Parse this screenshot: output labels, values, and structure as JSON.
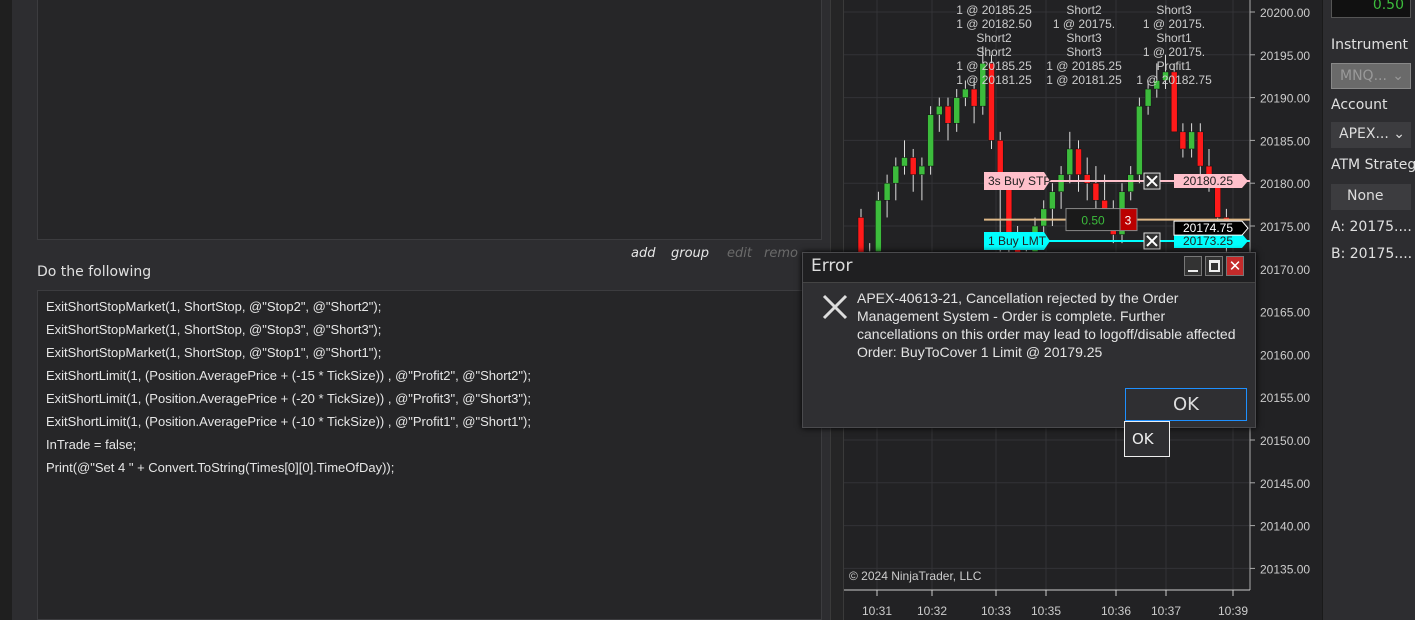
{
  "editor": {
    "actions": [
      {
        "label": "add",
        "enabled": true
      },
      {
        "label": "group",
        "enabled": true
      },
      {
        "label": "edit",
        "enabled": false
      },
      {
        "label": "remo",
        "enabled": false
      }
    ],
    "section_label": "Do the following",
    "code_lines": [
      "ExitShortStopMarket(1, ShortStop, @\"Stop2\", @\"Short2\");",
      "ExitShortStopMarket(1, ShortStop, @\"Stop3\", @\"Short3\");",
      "ExitShortStopMarket(1, ShortStop, @\"Stop1\", @\"Short1\");",
      "ExitShortLimit(1, (Position.AveragePrice + (-15 * TickSize)) , @\"Profit2\", @\"Short2\");",
      "ExitShortLimit(1, (Position.AveragePrice + (-20 * TickSize)) , @\"Profit3\", @\"Short3\");",
      "ExitShortLimit(1, (Position.AveragePrice + (-10 * TickSize)) , @\"Profit1\", @\"Short1\");",
      "InTrade = false;",
      "Print(@\"Set 4 \" + Convert.ToString(Times[0][0].TimeOfDay));"
    ]
  },
  "chart_data": {
    "type": "candlestick",
    "ylim": [
      20132,
      20201
    ],
    "y_ticks": [
      "20200.00",
      "20195.00",
      "20190.00",
      "20185.00",
      "20180.00",
      "20175.00",
      "20170.00",
      "20165.00",
      "20160.00",
      "20155.00",
      "20150.00",
      "20145.00",
      "20140.00",
      "20135.00"
    ],
    "x_ticks": [
      "10:31",
      "10:32",
      "10:33",
      "10:35",
      "10:36",
      "10:37",
      "10:39"
    ],
    "candles": [
      [
        20176,
        20177,
        20169,
        20171
      ],
      [
        20171,
        20173,
        20169,
        20172
      ],
      [
        20172,
        20179,
        20170,
        20178
      ],
      [
        20178,
        20181,
        20176,
        20180
      ],
      [
        20180,
        20183,
        20178,
        20182
      ],
      [
        20182,
        20185,
        20181,
        20183
      ],
      [
        20183,
        20184,
        20179,
        20181
      ],
      [
        20181,
        20183,
        20178,
        20182
      ],
      [
        20182,
        20189,
        20181,
        20188
      ],
      [
        20188,
        20190,
        20186,
        20189
      ],
      [
        20189,
        20190,
        20185,
        20187
      ],
      [
        20187,
        20191,
        20186,
        20190
      ],
      [
        20190,
        20192,
        20189,
        20191
      ],
      [
        20191,
        20192,
        20187,
        20189
      ],
      [
        20189,
        20196,
        20188,
        20194
      ],
      [
        20194,
        20195,
        20184,
        20185
      ],
      [
        20185,
        20186,
        20172,
        20180
      ],
      [
        20180,
        20181,
        20170,
        20174
      ],
      [
        20174,
        20175,
        20168,
        20170
      ],
      [
        20170,
        20173,
        20167,
        20172
      ],
      [
        20172,
        20176,
        20170,
        20175
      ],
      [
        20175,
        20178,
        20173,
        20177
      ],
      [
        20177,
        20180,
        20175,
        20179
      ],
      [
        20179,
        20182,
        20177,
        20181
      ],
      [
        20181,
        20186,
        20180,
        20184
      ],
      [
        20184,
        20185,
        20179,
        20181
      ],
      [
        20181,
        20183,
        20178,
        20180
      ],
      [
        20180,
        20182,
        20177,
        20178
      ],
      [
        20178,
        20181,
        20175,
        20176
      ],
      [
        20176,
        20178,
        20173,
        20174
      ],
      [
        20174,
        20180,
        20173,
        20179
      ],
      [
        20179,
        20182,
        20178,
        20181
      ],
      [
        20181,
        20190,
        20180,
        20189
      ],
      [
        20189,
        20192,
        20188,
        20191
      ],
      [
        20191,
        20194,
        20190,
        20192
      ],
      [
        20192,
        20195,
        20191,
        20193
      ],
      [
        20193,
        20194,
        20186,
        20186
      ],
      [
        20186,
        20187,
        20183,
        20184
      ],
      [
        20184,
        20187,
        20183,
        20186
      ],
      [
        20186,
        20187,
        20180,
        20182
      ],
      [
        20182,
        20184,
        20179,
        20180
      ],
      [
        20180,
        20181,
        20175,
        20176
      ],
      [
        20176,
        20177,
        20172,
        20173
      ]
    ],
    "annotations": [
      "1 @ 20185.25",
      "1 @ 20182.50",
      "Short2",
      "Short2",
      "1 @ 20185.25",
      "1 @ 20181.25",
      "Short2",
      "1 @ 20175.",
      "Short3",
      "Short3",
      "1 @ 20185.25",
      "1 @ 20181.25",
      "Short3",
      "1 @ 20175.",
      "Short1",
      "1 @ 20175.",
      "Profit1",
      "1 @ 20182.75"
    ],
    "orders": [
      {
        "label": "3s  Buy STP",
        "price": 20180.25,
        "price_label": "20180.25",
        "color": "#ffc0cb"
      },
      {
        "label": "1  Buy LMT",
        "price": 20173.25,
        "price_label": "20173.25",
        "color": "#00ffff"
      },
      {
        "label": "",
        "price": 20175.75,
        "price_label": "",
        "color": "#deb887"
      }
    ],
    "position": {
      "pnl": "0.50",
      "qty": "3"
    },
    "last_price": "20174.75",
    "copyright": "© 2024 NinjaTrader, LLC",
    "colors": {
      "up": "#3cbc3c",
      "down": "#ff1a1a",
      "background": "#222224",
      "grid": "#333336"
    }
  },
  "right_panel": {
    "top_value": "0.50",
    "instrument_label": "Instrument",
    "instrument_value": "MNQ...",
    "account_label": "Account",
    "account_value": "APEX...",
    "atm_label": "ATM Strategy",
    "atm_value": "None",
    "ask": "A:  20175....",
    "bid": "B:  20175...."
  },
  "dialog": {
    "title": "Error",
    "icon": "x-icon",
    "message": "APEX-40613-21, Cancellation rejected by the Order Management System - Order is complete. Further cancellations on this order may lead to logoff/disable affected Order: BuyToCover 1 Limit @ 20179.25",
    "ok_label": "OK",
    "tooltip": "OK"
  }
}
